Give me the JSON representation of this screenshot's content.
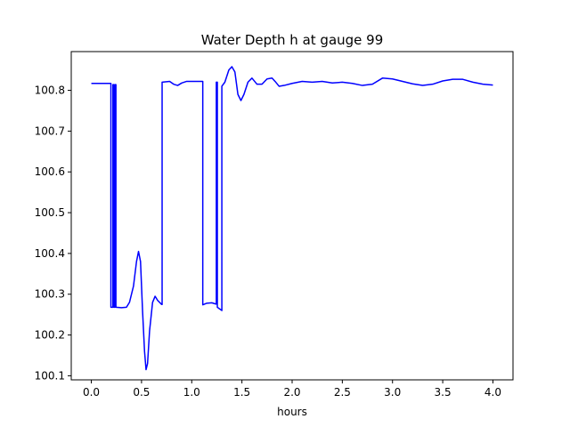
{
  "chart_data": {
    "type": "line",
    "title": "Water Depth h at gauge 99",
    "xlabel": "hours",
    "ylabel": "",
    "xlim": [
      -0.2,
      4.2
    ],
    "ylim": [
      100.09,
      100.895
    ],
    "xticks": [
      0.0,
      0.5,
      1.0,
      1.5,
      2.0,
      2.5,
      3.0,
      3.5,
      4.0
    ],
    "xtick_labels": [
      "0.0",
      "0.5",
      "1.0",
      "1.5",
      "2.0",
      "2.5",
      "3.0",
      "3.5",
      "4.0"
    ],
    "yticks": [
      100.1,
      100.2,
      100.3,
      100.4,
      100.5,
      100.6,
      100.7,
      100.8
    ],
    "ytick_labels": [
      "100.1",
      "100.2",
      "100.3",
      "100.4",
      "100.5",
      "100.6",
      "100.7",
      "100.8"
    ],
    "grid": false,
    "series": [
      {
        "name": "",
        "color": "#0000ff",
        "points": [
          [
            0.0,
            100.817
          ],
          [
            0.19,
            100.817
          ],
          [
            0.195,
            100.817
          ],
          [
            0.195,
            100.268
          ],
          [
            0.215,
            100.268
          ],
          [
            0.215,
            100.814
          ],
          [
            0.225,
            100.814
          ],
          [
            0.225,
            100.268
          ],
          [
            0.235,
            100.268
          ],
          [
            0.235,
            100.814
          ],
          [
            0.245,
            100.814
          ],
          [
            0.245,
            100.268
          ],
          [
            0.3,
            100.267
          ],
          [
            0.35,
            100.268
          ],
          [
            0.38,
            100.28
          ],
          [
            0.42,
            100.32
          ],
          [
            0.45,
            100.38
          ],
          [
            0.47,
            100.405
          ],
          [
            0.49,
            100.38
          ],
          [
            0.51,
            100.26
          ],
          [
            0.53,
            100.16
          ],
          [
            0.545,
            100.115
          ],
          [
            0.56,
            100.13
          ],
          [
            0.58,
            100.21
          ],
          [
            0.61,
            100.28
          ],
          [
            0.635,
            100.295
          ],
          [
            0.66,
            100.285
          ],
          [
            0.7,
            100.275
          ],
          [
            0.705,
            100.275
          ],
          [
            0.705,
            100.82
          ],
          [
            0.78,
            100.822
          ],
          [
            0.82,
            100.815
          ],
          [
            0.86,
            100.812
          ],
          [
            0.9,
            100.818
          ],
          [
            0.95,
            100.822
          ],
          [
            1.11,
            100.822
          ],
          [
            1.11,
            100.274
          ],
          [
            1.15,
            100.278
          ],
          [
            1.2,
            100.279
          ],
          [
            1.24,
            100.276
          ],
          [
            1.245,
            100.276
          ],
          [
            1.245,
            100.82
          ],
          [
            1.255,
            100.82
          ],
          [
            1.255,
            100.268
          ],
          [
            1.3,
            100.26
          ],
          [
            1.3,
            100.81
          ],
          [
            1.33,
            100.82
          ],
          [
            1.37,
            100.85
          ],
          [
            1.4,
            100.858
          ],
          [
            1.43,
            100.845
          ],
          [
            1.46,
            100.79
          ],
          [
            1.49,
            100.775
          ],
          [
            1.52,
            100.79
          ],
          [
            1.56,
            100.82
          ],
          [
            1.6,
            100.83
          ],
          [
            1.65,
            100.815
          ],
          [
            1.7,
            100.815
          ],
          [
            1.75,
            100.828
          ],
          [
            1.8,
            100.83
          ],
          [
            1.83,
            100.822
          ],
          [
            1.87,
            100.81
          ],
          [
            1.92,
            100.812
          ],
          [
            2.0,
            100.817
          ],
          [
            2.1,
            100.822
          ],
          [
            2.2,
            100.82
          ],
          [
            2.3,
            100.822
          ],
          [
            2.4,
            100.818
          ],
          [
            2.5,
            100.82
          ],
          [
            2.6,
            100.817
          ],
          [
            2.7,
            100.812
          ],
          [
            2.8,
            100.815
          ],
          [
            2.9,
            100.83
          ],
          [
            3.0,
            100.828
          ],
          [
            3.1,
            100.822
          ],
          [
            3.2,
            100.816
          ],
          [
            3.3,
            100.812
          ],
          [
            3.4,
            100.815
          ],
          [
            3.5,
            100.823
          ],
          [
            3.6,
            100.827
          ],
          [
            3.7,
            100.827
          ],
          [
            3.8,
            100.82
          ],
          [
            3.9,
            100.815
          ],
          [
            4.0,
            100.813
          ]
        ]
      }
    ]
  }
}
